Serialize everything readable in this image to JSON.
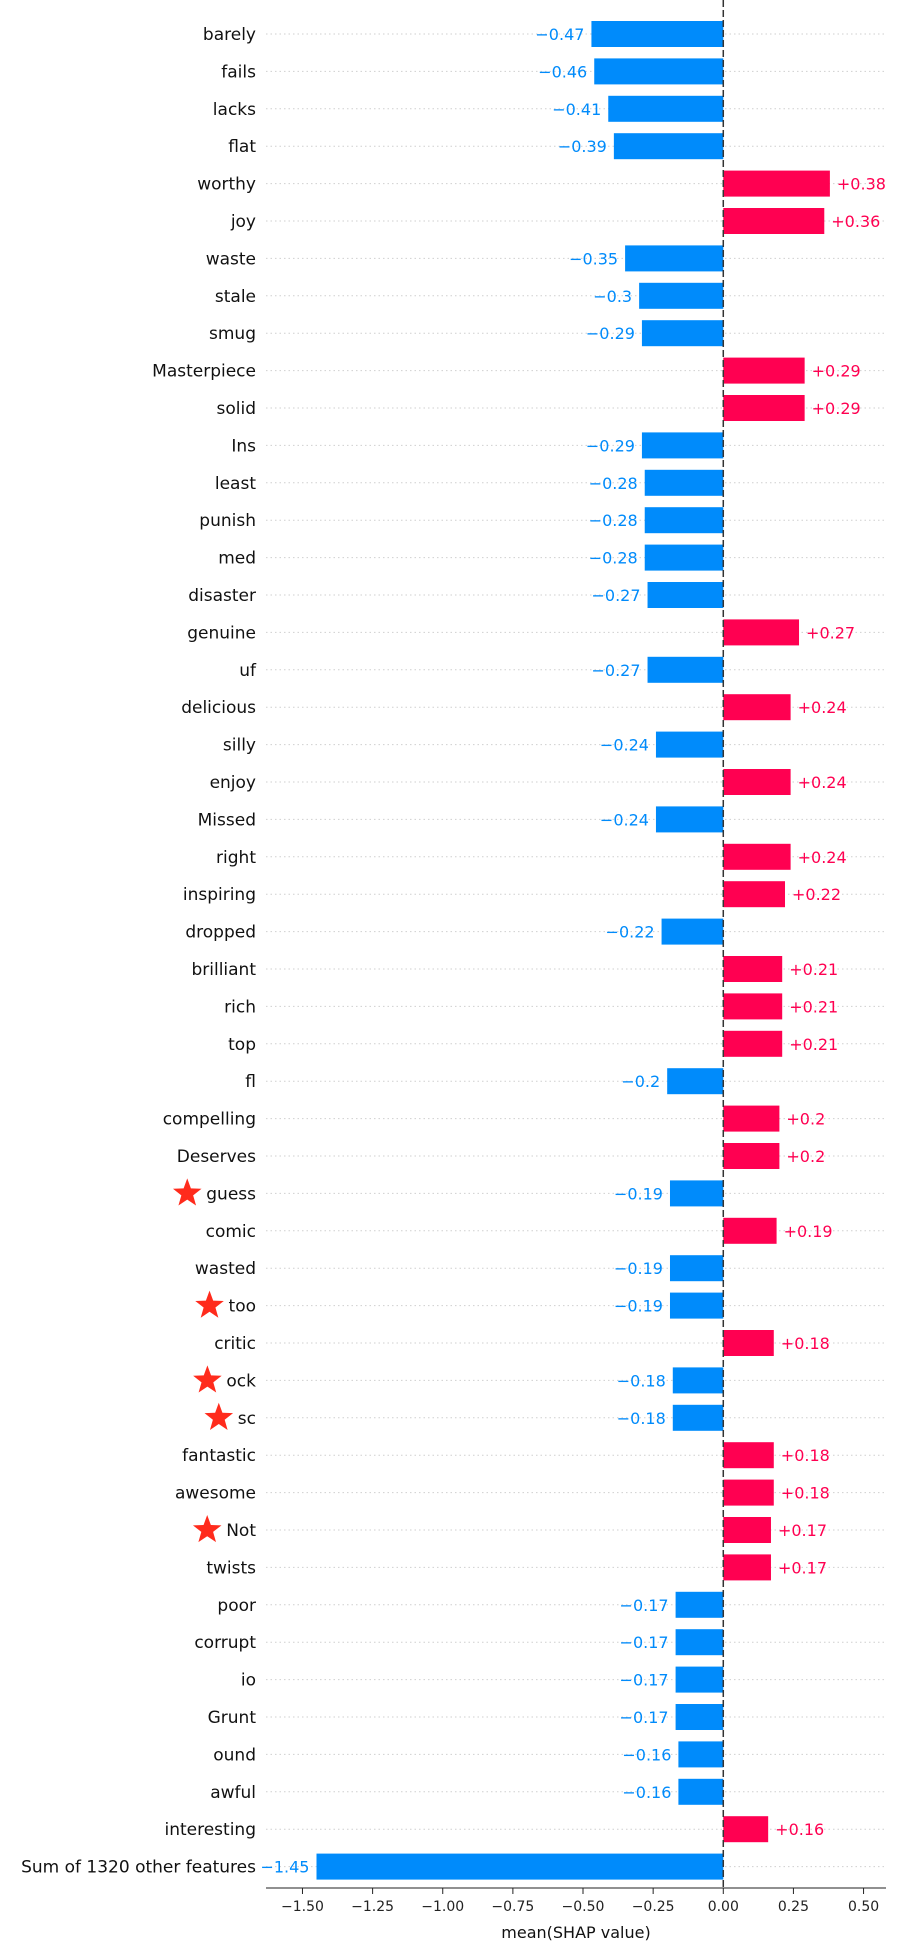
{
  "chart_data": {
    "type": "bar",
    "orientation": "horizontal",
    "title": "",
    "xlabel": "mean(SHAP value)",
    "ylabel": "",
    "xlim": [
      -1.63,
      0.58
    ],
    "xticks": [
      -1.5,
      -1.25,
      -1.0,
      -0.75,
      -0.5,
      -0.25,
      0.0,
      0.25,
      0.5
    ],
    "xtick_labels": [
      "−1.50",
      "−1.25",
      "−1.00",
      "−0.75",
      "−0.50",
      "−0.25",
      "0.00",
      "0.25",
      "0.50"
    ],
    "grid": "horizontal dotted",
    "positive_color": "#ff0051",
    "negative_color": "#008bfb",
    "marker_color": "#ff2b1c",
    "marker_icon": "star-icon",
    "bars": [
      {
        "label": "barely",
        "value": -0.47,
        "value_label": "−0.47",
        "starred": false
      },
      {
        "label": "fails",
        "value": -0.46,
        "value_label": "−0.46",
        "starred": false
      },
      {
        "label": "lacks",
        "value": -0.41,
        "value_label": "−0.41",
        "starred": false
      },
      {
        "label": "flat",
        "value": -0.39,
        "value_label": "−0.39",
        "starred": false
      },
      {
        "label": "worthy",
        "value": 0.38,
        "value_label": "+0.38",
        "starred": false
      },
      {
        "label": "joy",
        "value": 0.36,
        "value_label": "+0.36",
        "starred": false
      },
      {
        "label": "waste",
        "value": -0.35,
        "value_label": "−0.35",
        "starred": false
      },
      {
        "label": "stale",
        "value": -0.3,
        "value_label": "−0.3",
        "starred": false
      },
      {
        "label": "smug",
        "value": -0.29,
        "value_label": "−0.29",
        "starred": false
      },
      {
        "label": "Masterpiece",
        "value": 0.29,
        "value_label": "+0.29",
        "starred": false
      },
      {
        "label": "solid",
        "value": 0.29,
        "value_label": "+0.29",
        "starred": false
      },
      {
        "label": "Ins",
        "value": -0.29,
        "value_label": "−0.29",
        "starred": false
      },
      {
        "label": "least",
        "value": -0.28,
        "value_label": "−0.28",
        "starred": false
      },
      {
        "label": "punish",
        "value": -0.28,
        "value_label": "−0.28",
        "starred": false
      },
      {
        "label": "med",
        "value": -0.28,
        "value_label": "−0.28",
        "starred": false
      },
      {
        "label": "disaster",
        "value": -0.27,
        "value_label": "−0.27",
        "starred": false
      },
      {
        "label": "genuine",
        "value": 0.27,
        "value_label": "+0.27",
        "starred": false
      },
      {
        "label": "uf",
        "value": -0.27,
        "value_label": "−0.27",
        "starred": false
      },
      {
        "label": "delicious",
        "value": 0.24,
        "value_label": "+0.24",
        "starred": false
      },
      {
        "label": "silly",
        "value": -0.24,
        "value_label": "−0.24",
        "starred": false
      },
      {
        "label": "enjoy",
        "value": 0.24,
        "value_label": "+0.24",
        "starred": false
      },
      {
        "label": "Missed",
        "value": -0.24,
        "value_label": "−0.24",
        "starred": false
      },
      {
        "label": "right",
        "value": 0.24,
        "value_label": "+0.24",
        "starred": false
      },
      {
        "label": "inspiring",
        "value": 0.22,
        "value_label": "+0.22",
        "starred": false
      },
      {
        "label": "dropped",
        "value": -0.22,
        "value_label": "−0.22",
        "starred": false
      },
      {
        "label": "brilliant",
        "value": 0.21,
        "value_label": "+0.21",
        "starred": false
      },
      {
        "label": "rich",
        "value": 0.21,
        "value_label": "+0.21",
        "starred": false
      },
      {
        "label": "top",
        "value": 0.21,
        "value_label": "+0.21",
        "starred": false
      },
      {
        "label": "fl",
        "value": -0.2,
        "value_label": "−0.2",
        "starred": false
      },
      {
        "label": "compelling",
        "value": 0.2,
        "value_label": "+0.2",
        "starred": false
      },
      {
        "label": "Deserves",
        "value": 0.2,
        "value_label": "+0.2",
        "starred": false
      },
      {
        "label": "guess",
        "value": -0.19,
        "value_label": "−0.19",
        "starred": true
      },
      {
        "label": "comic",
        "value": 0.19,
        "value_label": "+0.19",
        "starred": false
      },
      {
        "label": "wasted",
        "value": -0.19,
        "value_label": "−0.19",
        "starred": false
      },
      {
        "label": "too",
        "value": -0.19,
        "value_label": "−0.19",
        "starred": true
      },
      {
        "label": "critic",
        "value": 0.18,
        "value_label": "+0.18",
        "starred": false
      },
      {
        "label": "ock",
        "value": -0.18,
        "value_label": "−0.18",
        "starred": true
      },
      {
        "label": "sc",
        "value": -0.18,
        "value_label": "−0.18",
        "starred": true
      },
      {
        "label": "fantastic",
        "value": 0.18,
        "value_label": "+0.18",
        "starred": false
      },
      {
        "label": "awesome",
        "value": 0.18,
        "value_label": "+0.18",
        "starred": false
      },
      {
        "label": "Not",
        "value": 0.17,
        "value_label": "+0.17",
        "starred": true
      },
      {
        "label": "twists",
        "value": 0.17,
        "value_label": "+0.17",
        "starred": false
      },
      {
        "label": "poor",
        "value": -0.17,
        "value_label": "−0.17",
        "starred": false
      },
      {
        "label": "corrupt",
        "value": -0.17,
        "value_label": "−0.17",
        "starred": false
      },
      {
        "label": "io",
        "value": -0.17,
        "value_label": "−0.17",
        "starred": false
      },
      {
        "label": "Grunt",
        "value": -0.17,
        "value_label": "−0.17",
        "starred": false
      },
      {
        "label": "ound",
        "value": -0.16,
        "value_label": "−0.16",
        "starred": false
      },
      {
        "label": "awful",
        "value": -0.16,
        "value_label": "−0.16",
        "starred": false
      },
      {
        "label": "interesting",
        "value": 0.16,
        "value_label": "+0.16",
        "starred": false
      },
      {
        "label": "Sum of 1320 other features",
        "value": -1.45,
        "value_label": "−1.45",
        "starred": false
      }
    ]
  }
}
